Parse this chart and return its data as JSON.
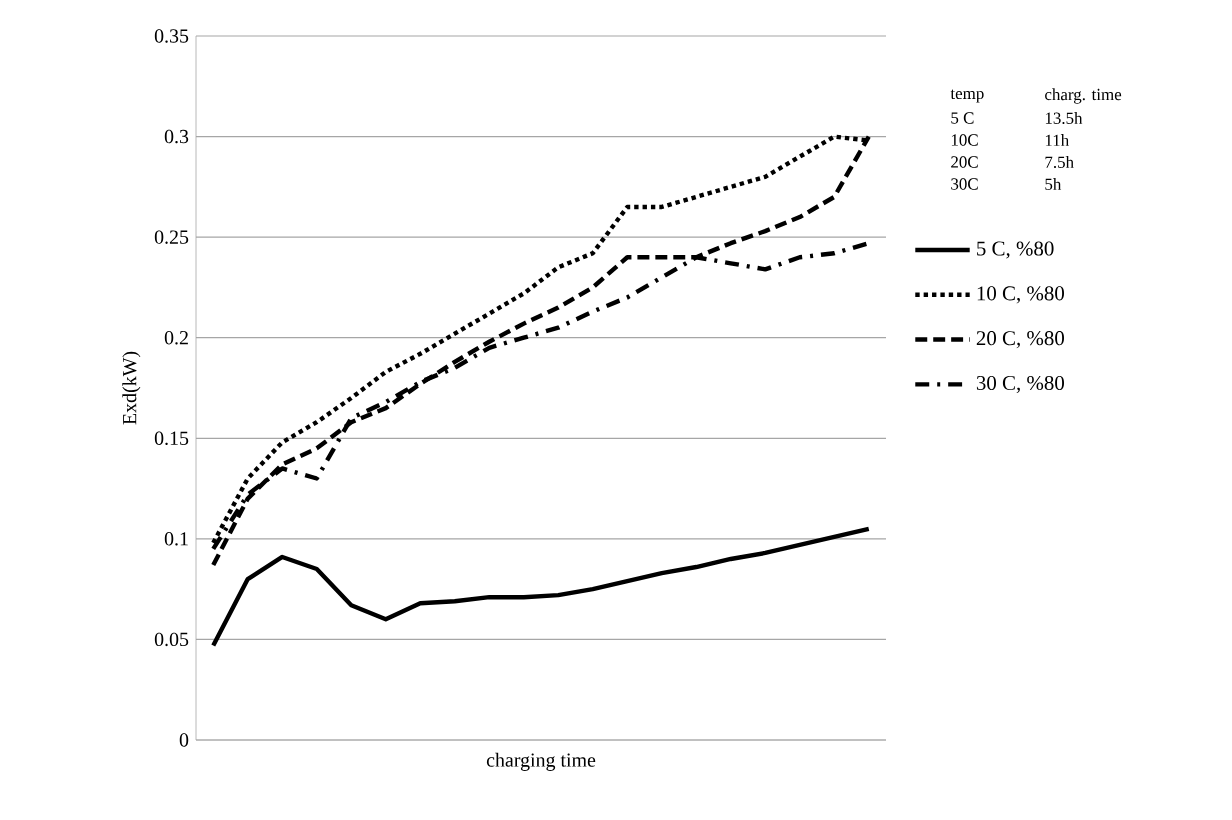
{
  "chart_data": {
    "type": "line",
    "xlabel": "charging time",
    "ylabel": "Exd(kW)",
    "categories": [
      null,
      null,
      null,
      null,
      null,
      null,
      null,
      null,
      null,
      null,
      null,
      null,
      null,
      null,
      null,
      null,
      null,
      null,
      null,
      null
    ],
    "ylim": [
      0,
      0.35
    ],
    "yticks": [
      {
        "value": 0,
        "label": "0"
      },
      {
        "value": 0.05,
        "label": "0.05"
      },
      {
        "value": 0.1,
        "label": "0.1"
      },
      {
        "value": 0.15,
        "label": "0.15"
      },
      {
        "value": 0.2,
        "label": "0.2"
      },
      {
        "value": 0.25,
        "label": "0.25"
      },
      {
        "value": 0.3,
        "label": "0.3"
      },
      {
        "value": 0.35,
        "label": "0.35"
      }
    ],
    "grid": "y",
    "legend": "right",
    "marker": "none",
    "series": [
      {
        "name": "5 C, %80",
        "color": "#000000",
        "line_style": "solid",
        "values": [
          0.047,
          0.08,
          0.091,
          0.085,
          0.067,
          0.06,
          0.068,
          0.069,
          0.071,
          0.071,
          0.072,
          0.075,
          0.079,
          0.083,
          0.086,
          0.09,
          0.093,
          0.097,
          0.101,
          0.105
        ]
      },
      {
        "name": "10 C, %80",
        "color": "#000000",
        "line_style": "dotted",
        "values": [
          0.098,
          0.13,
          0.148,
          0.158,
          0.17,
          0.183,
          0.192,
          0.202,
          0.212,
          0.222,
          0.235,
          0.242,
          0.265,
          0.265,
          0.27,
          0.275,
          0.28,
          0.29,
          0.3,
          0.298
        ]
      },
      {
        "name": "20 C, %80",
        "color": "#000000",
        "line_style": "dashed",
        "values": [
          0.087,
          0.12,
          0.137,
          0.145,
          0.158,
          0.165,
          0.177,
          0.188,
          0.198,
          0.207,
          0.215,
          0.225,
          0.24,
          0.24,
          0.24,
          0.247,
          0.253,
          0.26,
          0.27,
          0.3
        ]
      },
      {
        "name": "30 C, %80",
        "color": "#000000",
        "line_style": "dashdot",
        "values": [
          0.095,
          0.122,
          0.135,
          0.13,
          0.16,
          0.168,
          0.178,
          0.185,
          0.195,
          0.2,
          0.205,
          0.213,
          0.22,
          0.23,
          0.24,
          0.237,
          0.234,
          0.24,
          0.242,
          0.247
        ]
      }
    ],
    "annotations": [
      "temp",
      "charg. time",
      "5 C",
      "13.5h",
      "10C",
      "11h",
      "20C",
      "7.5h",
      "30C",
      "5h"
    ]
  }
}
